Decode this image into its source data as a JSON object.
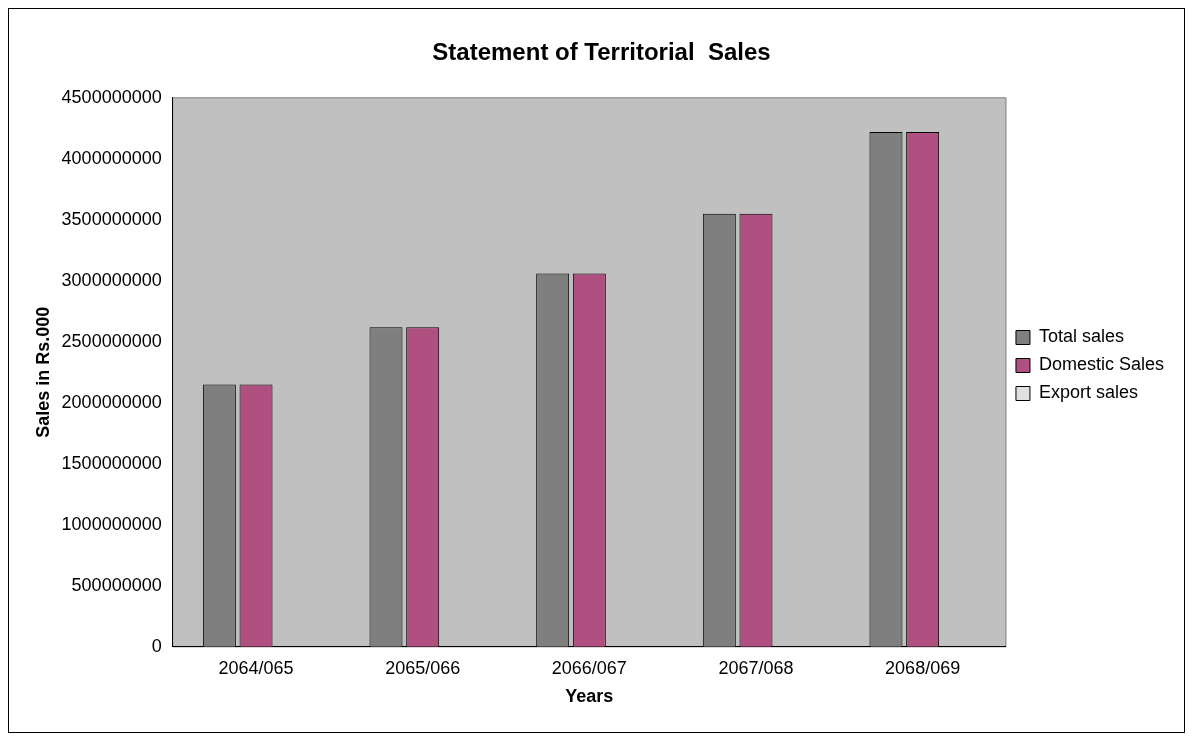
{
  "chart_data": {
    "type": "bar",
    "title": "Statement of Territorial  Sales",
    "xlabel": "Years",
    "ylabel": "Sales in Rs.000",
    "categories": [
      "2064/065",
      "2065/066",
      "2066/067",
      "2067/068",
      "2068/069"
    ],
    "series": [
      {
        "name": "Total sales",
        "color": "#7f7f7f",
        "values": [
          2150000000,
          2620000000,
          3060000000,
          3550000000,
          4220000000
        ]
      },
      {
        "name": "Domestic Sales",
        "color": "#b05080",
        "values": [
          2150000000,
          2620000000,
          3060000000,
          3550000000,
          4220000000
        ]
      },
      {
        "name": "Export sales",
        "color": "#e0e0e0",
        "values": [
          0,
          0,
          0,
          0,
          0
        ]
      }
    ],
    "ylim": [
      0,
      4500000000
    ],
    "yticks": [
      0,
      500000000,
      1000000000,
      1500000000,
      2000000000,
      2500000000,
      3000000000,
      3500000000,
      4000000000,
      4500000000
    ],
    "grid": false,
    "legend": "right"
  }
}
